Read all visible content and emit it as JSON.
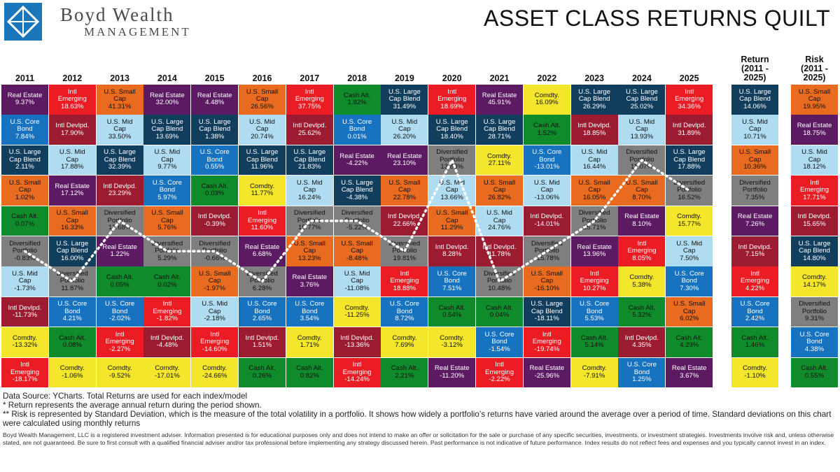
{
  "brand": {
    "name": "Boyd Wealth",
    "sub": "Management",
    "logo_icon": "diamond-cross-logo"
  },
  "title": "ASSET CLASS RETURNS QUILT",
  "colors": {
    "Real Estate": "#5c1a63",
    "Intl Emerging": "#ec1c24",
    "U.S. Small Cap": "#e96b1f",
    "U.S. Core Bond": "#1772bf",
    "Intl Devlpd.": "#9b1b30",
    "U.S. Large Cap Blend": "#123e5e",
    "U.S. Mid Cap": "#b0dcf2",
    "Cash Alt.": "#0f8b2b",
    "Diversified Portfolio": "#7f7f7f",
    "Comdty.": "#f4e62b"
  },
  "text_colors": {
    "Real Estate": "#ffffff",
    "Intl Emerging": "#ffffff",
    "U.S. Small Cap": "#111111",
    "U.S. Core Bond": "#ffffff",
    "Intl Devlpd.": "#ffffff",
    "U.S. Large Cap Blend": "#ffffff",
    "U.S. Mid Cap": "#111111",
    "Cash Alt.": "#111111",
    "Diversified Portfolio": "#111111",
    "Comdty.": "#111111"
  },
  "labels": {
    "Real Estate": "Real Estate",
    "Intl Emerging": "Intl\nEmerging",
    "U.S. Small Cap": "U.S. Small\nCap",
    "U.S. Core Bond": "U.S. Core\nBond",
    "Intl Devlpd.": "Intl Devlpd.",
    "U.S. Large Cap Blend": "U.S. Large\nCap Blend",
    "U.S. Mid Cap": "U.S. Mid\nCap",
    "Cash Alt.": "Cash Alt.",
    "Diversified Portfolio": "Diversified\nPortfolio",
    "Comdty.": "Comdty."
  },
  "chart_data": {
    "type": "table",
    "title": "ASSET CLASS RETURNS QUILT",
    "years": [
      {
        "year": "2011",
        "cells": [
          [
            "Real Estate",
            "9.37%"
          ],
          [
            "U.S. Core Bond",
            "7.84%"
          ],
          [
            "U.S. Large Cap Blend",
            "2.11%"
          ],
          [
            "U.S. Small Cap",
            "1.02%"
          ],
          [
            "Cash Alt.",
            "0.07%"
          ],
          [
            "Diversified Portfolio",
            "-0.83%"
          ],
          [
            "U.S. Mid Cap",
            "-1.73%"
          ],
          [
            "Intl Devlpd.",
            "-11.73%"
          ],
          [
            "Comdty.",
            "-13.32%"
          ],
          [
            "Intl Emerging",
            "-18.17%"
          ]
        ]
      },
      {
        "year": "2012",
        "cells": [
          [
            "Intl Emerging",
            "18.63%"
          ],
          [
            "Intl Devlpd.",
            "17.90%"
          ],
          [
            "U.S. Mid Cap",
            "17.88%"
          ],
          [
            "Real Estate",
            "17.12%"
          ],
          [
            "U.S. Small Cap",
            "16.33%"
          ],
          [
            "U.S. Large Cap Blend",
            "16.00%"
          ],
          [
            "Diversified Portfolio",
            "11.87%"
          ],
          [
            "U.S. Core Bond",
            "4.21%"
          ],
          [
            "Cash Alt.",
            "0.08%"
          ],
          [
            "Comdty.",
            "-1.06%"
          ]
        ]
      },
      {
        "year": "2013",
        "cells": [
          [
            "U.S. Small Cap",
            "41.31%"
          ],
          [
            "U.S. Mid Cap",
            "33.50%"
          ],
          [
            "U.S. Large Cap Blend",
            "32.39%"
          ],
          [
            "Intl Devlpd.",
            "23.29%"
          ],
          [
            "Diversified Portfolio",
            "12.68%"
          ],
          [
            "Real Estate",
            "1.22%"
          ],
          [
            "Cash Alt.",
            "0.05%"
          ],
          [
            "U.S. Core Bond",
            "-2.02%"
          ],
          [
            "Intl Emerging",
            "-2.27%"
          ],
          [
            "Comdty.",
            "-9.52%"
          ]
        ]
      },
      {
        "year": "2014",
        "cells": [
          [
            "Real Estate",
            "32.00%"
          ],
          [
            "U.S. Large Cap Blend",
            "13.69%"
          ],
          [
            "U.S. Mid Cap",
            "9.77%"
          ],
          [
            "U.S. Core Bond",
            "5.97%"
          ],
          [
            "U.S. Small Cap",
            "5.76%"
          ],
          [
            "Diversified Portfolio",
            "5.29%"
          ],
          [
            "Cash Alt.",
            "0.02%"
          ],
          [
            "Intl Emerging",
            "-1.82%"
          ],
          [
            "Intl Devlpd.",
            "-4.48%"
          ],
          [
            "Comdty.",
            "-17.01%"
          ]
        ]
      },
      {
        "year": "2015",
        "cells": [
          [
            "Real Estate",
            "4.48%"
          ],
          [
            "U.S. Large Cap Blend",
            "1.38%"
          ],
          [
            "U.S. Core Bond",
            "0.55%"
          ],
          [
            "Cash Alt.",
            "0.03%"
          ],
          [
            "Intl Devlpd.",
            "-0.39%"
          ],
          [
            "Diversified Portfolio",
            "-0.66%"
          ],
          [
            "U.S. Small Cap",
            "-1.97%"
          ],
          [
            "U.S. Mid Cap",
            "-2.18%"
          ],
          [
            "Intl Emerging",
            "-14.60%"
          ],
          [
            "Comdty.",
            "-24.66%"
          ]
        ]
      },
      {
        "year": "2016",
        "cells": [
          [
            "U.S. Small Cap",
            "26.56%"
          ],
          [
            "U.S. Mid Cap",
            "20.74%"
          ],
          [
            "U.S. Large Cap Blend",
            "11.96%"
          ],
          [
            "Comdty.",
            "11.77%"
          ],
          [
            "Intl Emerging",
            "11.60%"
          ],
          [
            "Real Estate",
            "6.68%"
          ],
          [
            "Diversified Portfolio",
            "6.28%"
          ],
          [
            "U.S. Core Bond",
            "2.65%"
          ],
          [
            "Intl Devlpd.",
            "1.51%"
          ],
          [
            "Cash Alt.",
            "0.26%"
          ]
        ]
      },
      {
        "year": "2017",
        "cells": [
          [
            "Intl Emerging",
            "37.75%"
          ],
          [
            "Intl Devlpd.",
            "25.62%"
          ],
          [
            "U.S. Large Cap Blend",
            "21.83%"
          ],
          [
            "U.S. Mid Cap",
            "16.24%"
          ],
          [
            "Diversified Portfolio",
            "15.77%"
          ],
          [
            "U.S. Small Cap",
            "13.23%"
          ],
          [
            "Real Estate",
            "3.76%"
          ],
          [
            "U.S. Core Bond",
            "3.54%"
          ],
          [
            "Comdty.",
            "1.71%"
          ],
          [
            "Cash Alt.",
            "0.82%"
          ]
        ]
      },
      {
        "year": "2018",
        "cells": [
          [
            "Cash Alt.",
            "1.82%"
          ],
          [
            "U.S. Core Bond",
            "0.01%"
          ],
          [
            "Real Estate",
            "-4.22%"
          ],
          [
            "U.S. Large Cap Blend",
            "-4.38%"
          ],
          [
            "Diversified Portfolio",
            "-5.22%"
          ],
          [
            "U.S. Small Cap",
            "-8.48%"
          ],
          [
            "U.S. Mid Cap",
            "-11.08%"
          ],
          [
            "Comdty.",
            "-11.25%"
          ],
          [
            "Intl Devlpd.",
            "-13.36%"
          ],
          [
            "Intl Emerging",
            "-14.24%"
          ]
        ]
      },
      {
        "year": "2019",
        "cells": [
          [
            "U.S. Large Cap Blend",
            "31.49%"
          ],
          [
            "U.S. Mid Cap",
            "26.20%"
          ],
          [
            "Real Estate",
            "23.10%"
          ],
          [
            "U.S. Small Cap",
            "22.78%"
          ],
          [
            "Intl Devlpd.",
            "22.66%"
          ],
          [
            "Diversified Portfolio",
            "19.81%"
          ],
          [
            "Intl Emerging",
            "18.88%"
          ],
          [
            "U.S. Core Bond",
            "8.72%"
          ],
          [
            "Comdty.",
            "7.69%"
          ],
          [
            "Cash Alt.",
            "2.21%"
          ]
        ]
      },
      {
        "year": "2020",
        "cells": [
          [
            "Intl Emerging",
            "18.69%"
          ],
          [
            "U.S. Large Cap Blend",
            "18.40%"
          ],
          [
            "Diversified Portfolio",
            "13.83%"
          ],
          [
            "U.S. Mid Cap",
            "13.66%"
          ],
          [
            "U.S. Small Cap",
            "11.29%"
          ],
          [
            "Intl Devlpd.",
            "8.28%"
          ],
          [
            "U.S. Core Bond",
            "7.51%"
          ],
          [
            "Cash Alt.",
            "0.54%"
          ],
          [
            "Comdty.",
            "-3.12%"
          ],
          [
            "Real Estate",
            "-11.20%"
          ]
        ]
      },
      {
        "year": "2021",
        "cells": [
          [
            "Real Estate",
            "45.91%"
          ],
          [
            "U.S. Large Cap Blend",
            "28.71%"
          ],
          [
            "Comdty.",
            "27.11%"
          ],
          [
            "U.S. Small Cap",
            "26.82%"
          ],
          [
            "U.S. Mid Cap",
            "24.76%"
          ],
          [
            "Intl Devlpd.",
            "11.78%"
          ],
          [
            "Diversified Portfolio",
            "10.48%"
          ],
          [
            "Cash Alt.",
            "0.04%"
          ],
          [
            "U.S. Core Bond",
            "-1.54%"
          ],
          [
            "Intl Emerging",
            "-2.22%"
          ]
        ]
      },
      {
        "year": "2022",
        "cells": [
          [
            "Comdty.",
            "16.09%"
          ],
          [
            "Cash Alt.",
            "1.52%"
          ],
          [
            "U.S. Core Bond",
            "-13.01%"
          ],
          [
            "U.S. Mid Cap",
            "-13.06%"
          ],
          [
            "Intl Devlpd.",
            "-14.01%"
          ],
          [
            "Diversified Portfolio",
            "-15.78%"
          ],
          [
            "U.S. Small Cap",
            "-16.10%"
          ],
          [
            "U.S. Large Cap Blend",
            "-18.11%"
          ],
          [
            "Intl Emerging",
            "-19.74%"
          ],
          [
            "Real Estate",
            "-25.96%"
          ]
        ]
      },
      {
        "year": "2023",
        "cells": [
          [
            "U.S. Large Cap Blend",
            "26.29%"
          ],
          [
            "Intl Devlpd.",
            "18.85%"
          ],
          [
            "U.S. Mid Cap",
            "16.44%"
          ],
          [
            "U.S. Small Cap",
            "16.05%"
          ],
          [
            "Diversified Portfolio",
            "15.71%"
          ],
          [
            "Real Estate",
            "13.96%"
          ],
          [
            "Intl Emerging",
            "10.27%"
          ],
          [
            "U.S. Core Bond",
            "5.53%"
          ],
          [
            "Cash Alt.",
            "5.14%"
          ],
          [
            "Comdty.",
            "-7.91%"
          ]
        ]
      },
      {
        "year": "2024",
        "cells": [
          [
            "U.S. Large Cap Blend",
            "25.02%"
          ],
          [
            "U.S. Mid Cap",
            "13.93%"
          ],
          [
            "Diversified Portfolio",
            "11.07%"
          ],
          [
            "U.S. Small Cap",
            "8.70%"
          ],
          [
            "Real Estate",
            "8.10%"
          ],
          [
            "Intl Emerging",
            "8.05%"
          ],
          [
            "Comdty.",
            "5.38%"
          ],
          [
            "Cash Alt.",
            "5.32%"
          ],
          [
            "Intl Devlpd.",
            "4.35%"
          ],
          [
            "U.S. Core Bond",
            "1.25%"
          ]
        ]
      },
      {
        "year": "2025",
        "cells": [
          [
            "Intl Emerging",
            "34.36%"
          ],
          [
            "Intl Devlpd.",
            "31.89%"
          ],
          [
            "U.S. Large Cap Blend",
            "17.88%"
          ],
          [
            "Diversified Portfolio",
            "16.52%"
          ],
          [
            "Comdty.",
            "15.77%"
          ],
          [
            "U.S. Mid Cap",
            "7.50%"
          ],
          [
            "U.S. Core Bond",
            "7.30%"
          ],
          [
            "U.S. Small Cap",
            "6.02%"
          ],
          [
            "Cash Alt.",
            "4.29%"
          ],
          [
            "Real Estate",
            "3.67%"
          ]
        ]
      }
    ],
    "return_column": {
      "header": "Return\n(2011 -\n2025)",
      "cells": [
        [
          "U.S. Large Cap Blend",
          "14.06%"
        ],
        [
          "U.S. Mid Cap",
          "10.71%"
        ],
        [
          "U.S. Small Cap",
          "10.36%"
        ],
        [
          "Diversified Portfolio",
          "7.35%"
        ],
        [
          "Real Estate",
          "7.26%"
        ],
        [
          "Intl Devlpd.",
          "7.15%"
        ],
        [
          "Intl Emerging",
          "4.22%"
        ],
        [
          "U.S. Core Bond",
          "2.42%"
        ],
        [
          "Cash Alt.",
          "1.46%"
        ],
        [
          "Comdty.",
          "-1.10%"
        ]
      ]
    },
    "risk_column": {
      "header": "Risk\n(2011 -\n2025)",
      "cells": [
        [
          "U.S. Small Cap",
          "19.95%"
        ],
        [
          "Real Estate",
          "18.75%"
        ],
        [
          "U.S. Mid Cap",
          "18.12%"
        ],
        [
          "Intl Emerging",
          "17.71%"
        ],
        [
          "Intl Devlpd.",
          "15.65%"
        ],
        [
          "U.S. Large Cap Blend",
          "14.80%"
        ],
        [
          "Comdty.",
          "14.17%"
        ],
        [
          "Diversified Portfolio",
          "9.31%"
        ],
        [
          "U.S. Core Bond",
          "4.38%"
        ],
        [
          "Cash Alt.",
          "0.55%"
        ]
      ]
    },
    "highlight_series": "Diversified Portfolio"
  },
  "notes": {
    "source": "Data Source: YCharts. Total Returns are used for each index/model",
    "return_note": "* Return represents the average annual return during the period shown.",
    "risk_note": "** Risk is represented by Standard Deviation, which is the measure of the total volatility in a portfolio. It shows how widely a portfolio’s returns have varied around the average over a period of time. Standard deviations on this chart were calculated using monthly returns"
  },
  "disclaimer": "Boyd Wealth Management, LLC is a registered investment adviser. Information presented is for educational purposes only and does not intend to make an offer or solicitation for the sale or purchase of any specific securities, investments, or investment strategies. Investments involve risk and, unless otherwise stated, are not guaranteed. Be sure to first consult with a qualified financial adviser and/or tax professional before implementing any strategy discussed herein. Past performance is not indicative of future performance. Index results do not reflect fees and expenses and you typically cannot invest in an index."
}
